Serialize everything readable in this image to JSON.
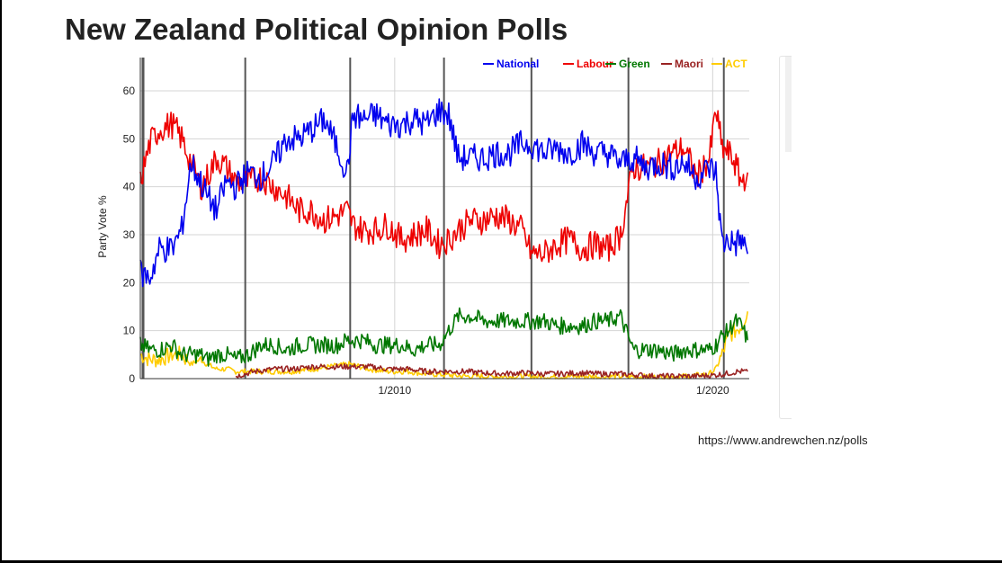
{
  "page": {
    "title": "New Zealand Political Opinion Polls",
    "source": "https://www.andrewchen.nz/polls"
  },
  "chart_data": {
    "type": "line",
    "title": "New Zealand Political Opinion Polls",
    "xlabel": "",
    "ylabel": "Party Vote %",
    "xlim": [
      2002.0,
      2021.15
    ],
    "ylim": [
      0,
      63
    ],
    "y_ticks": [
      0,
      10,
      20,
      30,
      40,
      50,
      60
    ],
    "x_ticks": [
      {
        "label": "1/2010",
        "x": 2010.0
      },
      {
        "label": "1/2020",
        "x": 2020.0
      }
    ],
    "election_markers": [
      2002.07,
      2002.1,
      2005.3,
      2008.6,
      2011.55,
      2014.3,
      2017.35,
      2020.35
    ],
    "grid": true,
    "legend_position": "top-right",
    "series": [
      {
        "name": "National",
        "color": "#0000ee",
        "x": [
          2002.0,
          2002.3,
          2002.6,
          2003.0,
          2003.3,
          2003.6,
          2003.9,
          2004.1,
          2004.4,
          2004.7,
          2005.0,
          2005.4,
          2005.8,
          2006.2,
          2006.6,
          2007.0,
          2007.4,
          2007.8,
          2008.2,
          2008.5,
          2008.7,
          2009.0,
          2009.4,
          2009.8,
          2010.2,
          2010.6,
          2011.0,
          2011.4,
          2011.7,
          2012.0,
          2012.4,
          2012.8,
          2013.2,
          2013.6,
          2014.0,
          2014.3,
          2014.7,
          2015.1,
          2015.5,
          2015.9,
          2016.3,
          2016.7,
          2017.1,
          2017.5,
          2017.9,
          2018.3,
          2018.7,
          2019.1,
          2019.5,
          2019.9,
          2020.1,
          2020.3,
          2020.5,
          2020.7,
          2020.9,
          2021.1
        ],
        "values": [
          22,
          21,
          27,
          27,
          31,
          45,
          41,
          38,
          35,
          41,
          40,
          43,
          42,
          45,
          50,
          50,
          52,
          54,
          48,
          43,
          55,
          54,
          55,
          53,
          53,
          54,
          53,
          56,
          55,
          46,
          46,
          46,
          47,
          47,
          49,
          49,
          47,
          48,
          47,
          49,
          47,
          47,
          45,
          46,
          44,
          45,
          44,
          45,
          42,
          44,
          43,
          28,
          29,
          28,
          29,
          26
        ]
      },
      {
        "name": "Labour",
        "color": "#ee0000",
        "x": [
          2002.0,
          2002.3,
          2002.6,
          2003.0,
          2003.3,
          2003.6,
          2003.9,
          2004.1,
          2004.4,
          2004.7,
          2005.0,
          2005.4,
          2005.8,
          2006.2,
          2006.6,
          2007.0,
          2007.4,
          2007.8,
          2008.2,
          2008.5,
          2008.7,
          2009.0,
          2009.4,
          2009.8,
          2010.2,
          2010.6,
          2011.0,
          2011.4,
          2011.7,
          2012.0,
          2012.4,
          2012.8,
          2013.2,
          2013.6,
          2014.0,
          2014.3,
          2014.7,
          2015.1,
          2015.5,
          2015.9,
          2016.3,
          2016.7,
          2017.1,
          2017.5,
          2017.9,
          2018.3,
          2018.7,
          2019.1,
          2019.5,
          2019.9,
          2020.1,
          2020.3,
          2020.5,
          2020.7,
          2020.9,
          2021.1
        ],
        "values": [
          41,
          49,
          52,
          53,
          50,
          45,
          40,
          42,
          46,
          44,
          41,
          41,
          42,
          40,
          38,
          35,
          35,
          33,
          34,
          35,
          32,
          31,
          31,
          32,
          29,
          30,
          31,
          28,
          29,
          31,
          33,
          33,
          34,
          33,
          31,
          26,
          26,
          28,
          29,
          27,
          28,
          27,
          30,
          44,
          44,
          45,
          47,
          48,
          42,
          46,
          56,
          48,
          47,
          45,
          41,
          43
        ]
      },
      {
        "name": "Green",
        "color": "#007700",
        "x": [
          2002.0,
          2002.3,
          2002.6,
          2003.0,
          2003.3,
          2003.6,
          2003.9,
          2004.1,
          2004.4,
          2004.7,
          2005.0,
          2005.4,
          2005.8,
          2006.2,
          2006.6,
          2007.0,
          2007.4,
          2007.8,
          2008.2,
          2008.5,
          2008.7,
          2009.0,
          2009.4,
          2009.8,
          2010.2,
          2010.6,
          2011.0,
          2011.4,
          2011.7,
          2012.0,
          2012.4,
          2012.8,
          2013.2,
          2013.6,
          2014.0,
          2014.3,
          2014.7,
          2015.1,
          2015.5,
          2015.9,
          2016.3,
          2016.7,
          2017.1,
          2017.5,
          2017.9,
          2018.3,
          2018.7,
          2019.1,
          2019.5,
          2019.9,
          2020.1,
          2020.3,
          2020.5,
          2020.7,
          2020.9,
          2021.1
        ],
        "values": [
          7,
          6,
          6,
          7,
          5,
          5,
          5,
          4,
          5,
          5,
          4,
          5,
          7,
          7,
          6,
          7,
          7,
          7,
          7,
          8,
          8,
          8,
          7,
          7,
          7,
          6,
          7,
          7,
          10,
          13,
          13,
          12,
          12,
          12,
          12,
          12,
          12,
          11,
          11,
          11,
          12,
          12,
          13,
          6,
          6,
          6,
          5,
          6,
          6,
          6,
          7,
          9,
          10,
          12,
          11,
          8
        ]
      },
      {
        "name": "Maori",
        "color": "#992222",
        "x": [
          2005.0,
          2005.6,
          2006.2,
          2006.8,
          2007.4,
          2008.0,
          2008.6,
          2009.2,
          2009.8,
          2010.4,
          2011.0,
          2011.6,
          2012.2,
          2012.8,
          2013.4,
          2014.0,
          2014.6,
          2015.2,
          2015.8,
          2016.4,
          2017.0,
          2017.6,
          2018.2,
          2018.8,
          2019.4,
          2020.0,
          2020.4,
          2020.8,
          2021.1
        ],
        "values": [
          0.5,
          1.5,
          2,
          2,
          2.5,
          2.5,
          2.5,
          2.5,
          2,
          2,
          1.5,
          1.5,
          1.5,
          1.2,
          1,
          1.2,
          1,
          1,
          1.2,
          1,
          1,
          0.8,
          0.5,
          0.5,
          0.5,
          0.7,
          1,
          1.5,
          1.5
        ]
      },
      {
        "name": "ACT",
        "color": "#ffcc00",
        "x": [
          2002.0,
          2002.3,
          2002.6,
          2003.0,
          2003.3,
          2003.6,
          2003.9,
          2004.1,
          2004.4,
          2004.7,
          2005.0,
          2005.6,
          2006.2,
          2006.8,
          2007.4,
          2008.0,
          2008.6,
          2009.2,
          2009.8,
          2010.4,
          2011.0,
          2011.6,
          2012.2,
          2012.8,
          2013.4,
          2014.0,
          2014.6,
          2015.2,
          2015.8,
          2016.4,
          2017.0,
          2017.6,
          2018.2,
          2018.8,
          2019.4,
          2019.9,
          2020.1,
          2020.3,
          2020.5,
          2020.7,
          2020.9,
          2021.1
        ],
        "values": [
          5,
          4,
          4,
          5,
          5,
          3,
          4,
          3,
          2,
          2,
          1.5,
          1.5,
          1.5,
          1.5,
          2,
          2.5,
          3,
          2,
          1.5,
          1.5,
          1,
          0.8,
          0.5,
          0.5,
          0.4,
          0.5,
          0.4,
          0.4,
          0.5,
          0.4,
          0.5,
          0.4,
          0.3,
          0.4,
          0.6,
          1,
          2,
          5,
          9,
          10,
          11,
          14
        ]
      }
    ]
  }
}
